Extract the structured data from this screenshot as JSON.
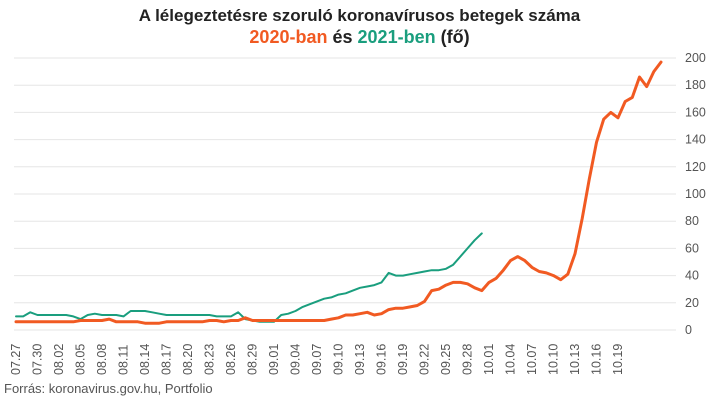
{
  "title": {
    "line1": "A lélegeztetésre szoruló koronavírusos betegek száma",
    "year2020": "2020-ban",
    "connector": "és",
    "year2021": "2021-ben",
    "unit": "(fő)"
  },
  "source": "Forrás: koronavirus.gov.hu, Portfolio",
  "colors": {
    "series2020": "#f15a22",
    "series2021": "#1a9e7e",
    "grid": "#e6e6e6"
  },
  "chart_data": {
    "type": "line",
    "x_tick_labels": [
      "07.27",
      "07.30",
      "08.02",
      "08.05",
      "08.08",
      "08.11",
      "08.14",
      "08.17",
      "08.20",
      "08.23",
      "08.26",
      "08.29",
      "09.01",
      "09.04",
      "09.07",
      "09.10",
      "09.13",
      "09.16",
      "09.19",
      "09.22",
      "09.25",
      "09.28",
      "10.01",
      "10.04",
      "10.07",
      "10.10",
      "10.13",
      "10.16",
      "10.19"
    ],
    "ylim": [
      0,
      200
    ],
    "y_ticks": [
      0,
      20,
      40,
      60,
      80,
      100,
      120,
      140,
      160,
      180,
      200
    ],
    "grid": true,
    "series": [
      {
        "name": "2020-ban",
        "values": [
          6,
          6,
          6,
          6,
          6,
          6,
          6,
          6,
          6,
          7,
          7,
          7,
          7,
          8,
          6,
          6,
          6,
          6,
          5,
          5,
          5,
          6,
          6,
          6,
          6,
          6,
          6,
          7,
          7,
          6,
          7,
          7,
          9,
          7,
          7,
          7,
          7,
          7,
          7,
          7,
          7,
          7,
          7,
          7,
          8,
          9,
          11,
          11,
          12,
          13,
          11,
          12,
          15,
          16,
          16,
          17,
          18,
          21,
          29,
          30,
          33,
          35,
          35,
          34,
          31,
          29,
          35,
          38,
          44,
          51,
          54,
          51,
          46,
          43,
          42,
          40,
          37,
          41,
          56,
          82,
          111,
          138,
          155,
          160,
          156,
          168,
          171,
          186,
          179,
          190,
          197
        ]
      },
      {
        "name": "2021-ben",
        "values": [
          10,
          10,
          13,
          11,
          11,
          11,
          11,
          11,
          10,
          8,
          11,
          12,
          11,
          11,
          11,
          10,
          14,
          14,
          14,
          13,
          12,
          11,
          11,
          11,
          11,
          11,
          11,
          11,
          10,
          10,
          10,
          13,
          8,
          7,
          6,
          6,
          6,
          11,
          12,
          14,
          17,
          19,
          21,
          23,
          24,
          26,
          27,
          29,
          31,
          32,
          33,
          35,
          42,
          40,
          40,
          41,
          42,
          43,
          44,
          44,
          45,
          48,
          54,
          60,
          66,
          71
        ]
      }
    ]
  }
}
